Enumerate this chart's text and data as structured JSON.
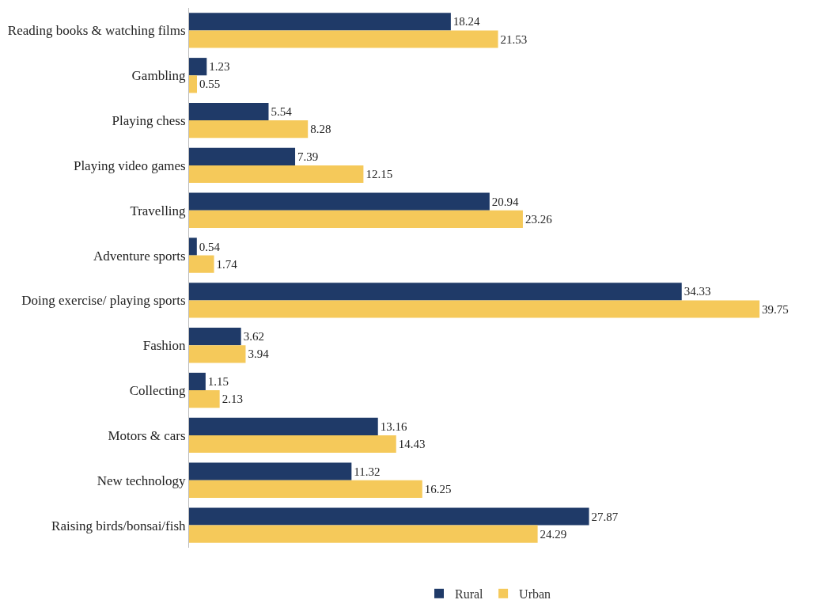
{
  "chart_data": {
    "type": "bar",
    "orientation": "horizontal",
    "data_labels": true,
    "legend": "bottom",
    "categories": [
      "Reading books & watching films",
      "Gambling",
      "Playing chess",
      "Playing video games",
      "Travelling",
      "Adventure sports",
      "Doing exercise/ playing sports",
      "Fashion",
      "Collecting",
      "Motors & cars",
      "New technology",
      "Raising birds/bonsai/fish"
    ],
    "series": [
      {
        "name": "Rural",
        "color": "#1f3a68",
        "values": [
          18.24,
          1.23,
          5.54,
          7.39,
          20.94,
          0.54,
          34.33,
          3.62,
          1.15,
          13.16,
          11.32,
          27.87
        ]
      },
      {
        "name": "Urban",
        "color": "#f5c95a",
        "values": [
          21.53,
          0.55,
          8.28,
          12.15,
          23.26,
          1.74,
          39.75,
          3.94,
          2.13,
          14.43,
          16.25,
          24.29
        ]
      }
    ]
  }
}
